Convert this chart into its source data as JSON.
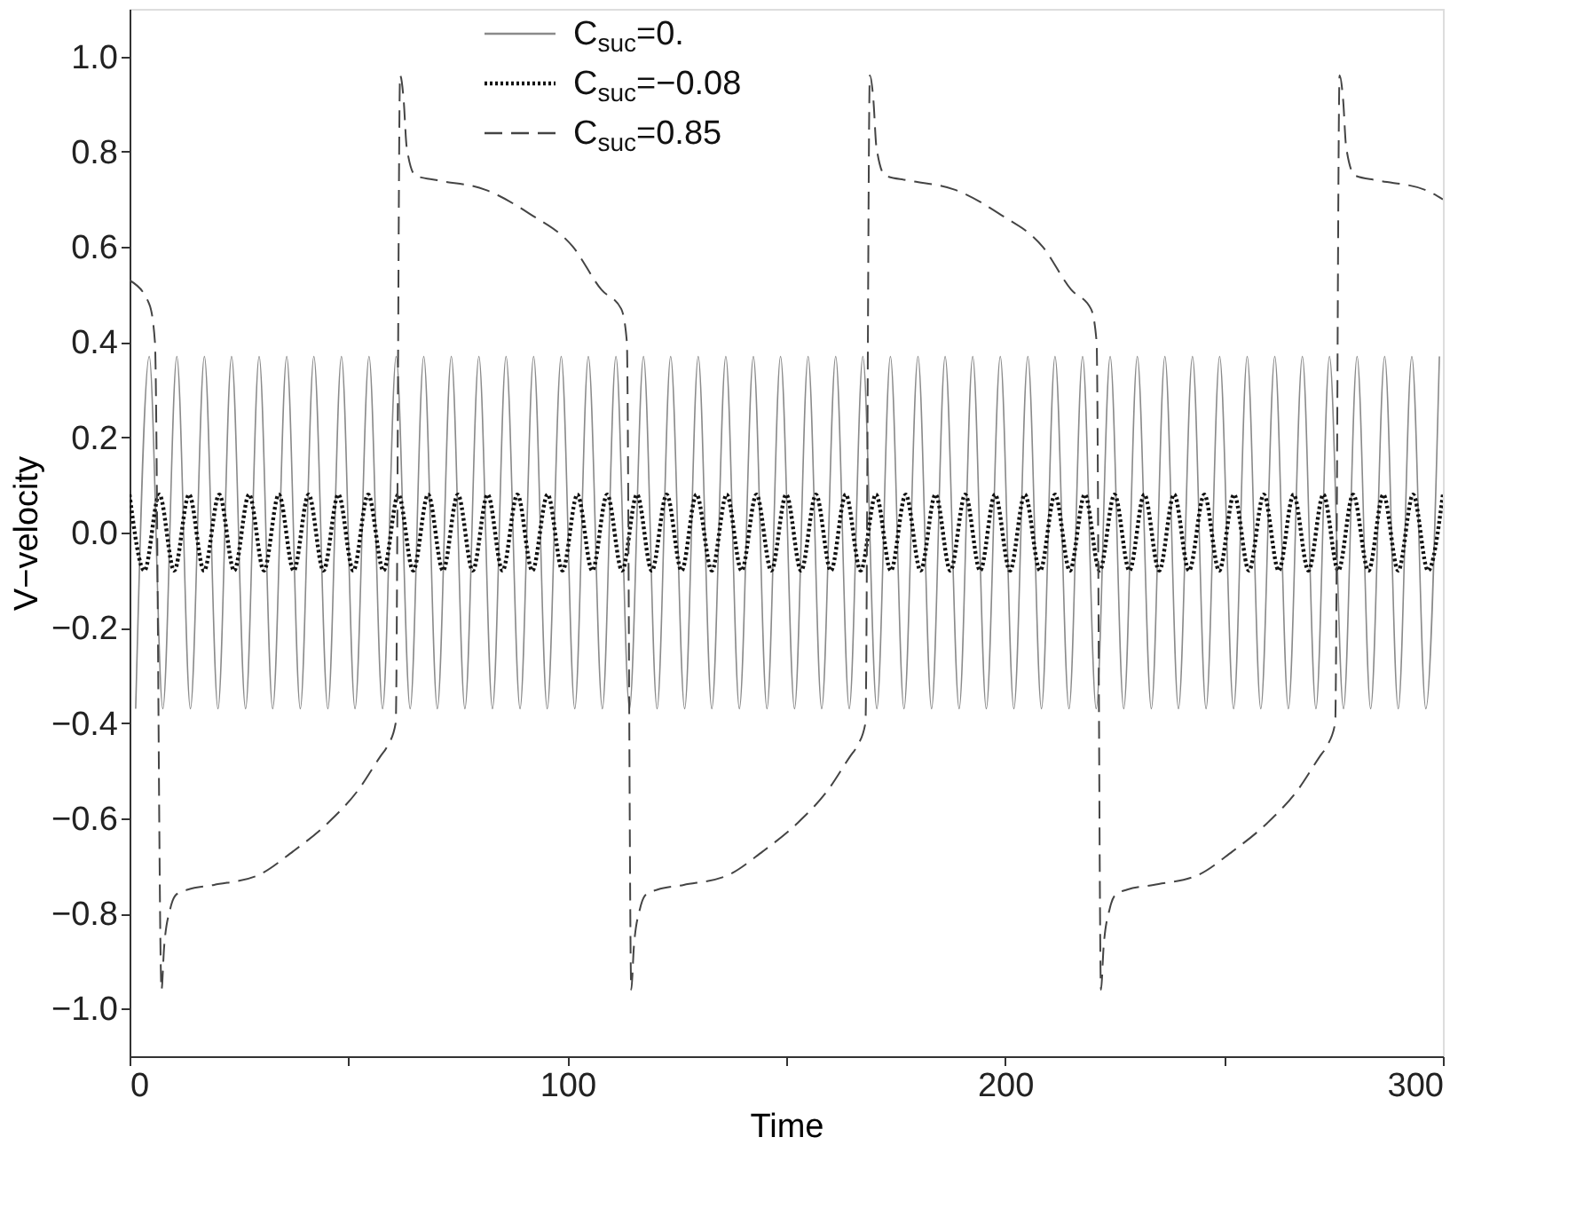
{
  "chart_data": {
    "type": "line",
    "xlabel": "Time",
    "ylabel": "V−velocity",
    "xlim": [
      0,
      300
    ],
    "xticks": [
      0,
      {
        "value": 50,
        "label": null
      },
      100,
      {
        "value": 150,
        "label": null
      },
      200,
      {
        "value": 250,
        "label": null
      },
      300
    ],
    "ylim": [
      -1.1,
      1.1
    ],
    "yticks": [
      {
        "value": -1.0,
        "label": "−1.0"
      },
      {
        "value": -0.8,
        "label": "−0.8"
      },
      {
        "value": -0.6,
        "label": "−0.6"
      },
      {
        "value": -0.4,
        "label": "−0.4"
      },
      {
        "value": -0.2,
        "label": "−0.2"
      },
      {
        "value": 0.0,
        "label": "0.0"
      },
      {
        "value": 0.2,
        "label": "0.2"
      },
      {
        "value": 0.4,
        "label": "0.4"
      },
      {
        "value": 0.6,
        "label": "0.6"
      },
      {
        "value": 0.8,
        "label": "0.8"
      },
      {
        "value": 1.0,
        "label": "1.0"
      }
    ],
    "grid": false,
    "legend": "top",
    "marker": "none",
    "series": [
      {
        "name": "C$_{suc}$=0.",
        "color": "#8a8a8a",
        "line_style": "solid",
        "x": [
          1.4,
          4.5,
          7.6,
          10.8,
          13.9,
          17.1,
          20.2,
          23.3,
          26.5,
          29.6,
          32.7,
          35.9,
          39.0,
          42.1,
          45.3,
          48.4,
          51.5,
          54.7,
          57.8,
          60.9,
          64.1,
          67.2,
          70.3,
          73.5,
          76.6,
          79.8,
          82.9,
          86.0,
          89.2,
          92.3,
          95.4,
          98.6,
          101.7,
          104.8,
          108.0,
          111.1,
          114.2,
          117.4,
          120.5,
          123.6,
          126.8,
          129.9,
          133.0,
          136.2,
          139.3,
          142.5,
          145.6,
          148.7,
          151.9,
          155.0,
          158.1,
          161.3,
          164.4,
          167.5,
          170.7,
          173.8,
          176.9,
          180.1,
          183.2,
          186.3,
          189.5,
          192.6,
          195.7,
          198.9,
          202.0,
          205.2,
          208.3,
          211.4,
          214.6,
          217.7,
          220.8,
          224.0,
          227.1,
          230.2,
          233.4,
          236.5,
          239.6,
          242.8,
          245.9,
          249.0,
          252.2,
          255.3,
          258.4,
          261.6,
          264.7,
          267.9,
          271.0,
          274.1,
          277.3,
          280.4,
          283.5,
          286.7,
          289.8,
          292.9,
          296.1,
          299.2
        ],
        "values": [
          -0.37,
          0.37,
          -0.37,
          0.37,
          -0.37,
          0.37,
          -0.37,
          0.37,
          -0.37,
          0.37,
          -0.37,
          0.37,
          -0.37,
          0.37,
          -0.37,
          0.37,
          -0.37,
          0.37,
          -0.37,
          0.37,
          -0.37,
          0.37,
          -0.37,
          0.37,
          -0.37,
          0.37,
          -0.37,
          0.37,
          -0.37,
          0.37,
          -0.37,
          0.37,
          -0.37,
          0.37,
          -0.37,
          0.37,
          -0.37,
          0.37,
          -0.37,
          0.37,
          -0.37,
          0.37,
          -0.37,
          0.37,
          -0.37,
          0.37,
          -0.37,
          0.37,
          -0.37,
          0.37,
          -0.37,
          0.37,
          -0.37,
          0.37,
          -0.37,
          0.37,
          -0.37,
          0.37,
          -0.37,
          0.37,
          -0.37,
          0.37,
          -0.37,
          0.37,
          -0.37,
          0.37,
          -0.37,
          0.37,
          -0.37,
          0.37,
          -0.37,
          0.37,
          -0.37,
          0.37,
          -0.37,
          0.37,
          -0.37,
          0.37,
          -0.37,
          0.37,
          -0.37,
          0.37,
          -0.37,
          0.37,
          -0.37,
          0.37,
          -0.37,
          0.37,
          -0.37,
          0.37,
          -0.37,
          0.37,
          -0.37,
          0.37,
          -0.37,
          0.37
        ]
      },
      {
        "name": "C$_{suc}$=−0.08",
        "color": "#111111",
        "line_style": "dotted",
        "x": [
          0,
          3.4,
          6.8,
          10.2,
          13.6,
          17.0,
          20.5,
          23.9,
          27.3,
          30.7,
          34.1,
          37.5,
          40.9,
          44.3,
          47.7,
          51.1,
          54.5,
          58.0,
          61.4,
          64.8,
          68.2,
          71.6,
          75.0,
          78.4,
          81.8,
          85.2,
          88.6,
          92.0,
          95.5,
          98.9,
          102.3,
          105.7,
          109.1,
          112.5,
          115.9,
          119.3,
          122.7,
          126.1,
          129.5,
          133.0,
          136.4,
          139.8,
          143.2,
          146.6,
          150.0,
          153.4,
          156.8,
          160.2,
          163.6,
          167.0,
          170.5,
          173.9,
          177.3,
          180.7,
          184.1,
          187.5,
          190.9,
          194.3,
          197.7,
          201.1,
          204.5,
          208.0,
          211.4,
          214.8,
          218.2,
          221.6,
          225.0,
          228.4,
          231.8,
          235.2,
          238.6,
          242.0,
          245.5,
          248.9,
          252.3,
          255.7,
          259.1,
          262.5,
          265.9,
          269.3,
          272.7,
          276.1,
          279.5,
          283.0,
          286.4,
          289.8,
          293.2,
          296.6,
          300.0
        ],
        "values": [
          0.08,
          -0.08,
          0.08,
          -0.08,
          0.08,
          -0.08,
          0.08,
          -0.08,
          0.08,
          -0.08,
          0.08,
          -0.08,
          0.08,
          -0.08,
          0.08,
          -0.08,
          0.08,
          -0.08,
          0.08,
          -0.08,
          0.08,
          -0.08,
          0.08,
          -0.08,
          0.08,
          -0.08,
          0.08,
          -0.08,
          0.08,
          -0.08,
          0.08,
          -0.08,
          0.08,
          -0.08,
          0.08,
          -0.08,
          0.08,
          -0.08,
          0.08,
          -0.08,
          0.08,
          -0.08,
          0.08,
          -0.08,
          0.08,
          -0.08,
          0.08,
          -0.08,
          0.08,
          -0.08,
          0.08,
          -0.08,
          0.08,
          -0.08,
          0.08,
          -0.08,
          0.08,
          -0.08,
          0.08,
          -0.08,
          0.08,
          -0.08,
          0.08,
          -0.08,
          0.08,
          -0.08,
          0.08,
          -0.08,
          0.08,
          -0.08,
          0.08,
          -0.08,
          0.08,
          -0.08,
          0.08,
          -0.08,
          0.08,
          -0.08,
          0.08,
          -0.08,
          0.08,
          -0.08,
          0.08,
          -0.08,
          0.08,
          -0.08,
          0.08,
          -0.08,
          0.08
        ]
      },
      {
        "name": "C$_{suc}$=0.85",
        "color": "#444444",
        "line_style": "dashed",
        "x": [
          0,
          4.5,
          5.8,
          7.3,
          7.9,
          9.3,
          10.7,
          13.3,
          19.3,
          29.3,
          37.3,
          45.3,
          52.3,
          57.3,
          58.8,
          60.8,
          61.8,
          62.6,
          63.3,
          65.3,
          70.3,
          81.3,
          91.3,
          101.3,
          107.8,
          112.3,
          113.6,
          114.6,
          115.2,
          116.6,
          118.0,
          120.6,
          126.6,
          136.6,
          144.6,
          152.6,
          159.6,
          164.6,
          166.1,
          168.1,
          169.1,
          169.9,
          170.6,
          172.6,
          177.6,
          188.6,
          198.6,
          208.6,
          215.1,
          219.6,
          220.9,
          221.9,
          222.5,
          223.9,
          225.3,
          227.9,
          233.9,
          243.9,
          251.9,
          259.9,
          266.9,
          271.9,
          273.4,
          275.4,
          276.4,
          277.2,
          277.9,
          279.9,
          284.9,
          295.9,
          300.0
        ],
        "values": [
          0.53,
          0.48,
          0.4,
          -0.96,
          -0.87,
          -0.79,
          -0.76,
          -0.75,
          -0.74,
          -0.72,
          -0.67,
          -0.61,
          -0.54,
          -0.47,
          -0.45,
          -0.4,
          0.96,
          0.91,
          0.81,
          0.75,
          0.74,
          0.72,
          0.67,
          0.6,
          0.51,
          0.47,
          0.4,
          -0.96,
          -0.87,
          -0.79,
          -0.76,
          -0.75,
          -0.74,
          -0.72,
          -0.67,
          -0.61,
          -0.54,
          -0.47,
          -0.45,
          -0.4,
          0.96,
          0.91,
          0.81,
          0.75,
          0.74,
          0.72,
          0.67,
          0.6,
          0.51,
          0.47,
          0.4,
          -0.96,
          -0.87,
          -0.79,
          -0.76,
          -0.75,
          -0.74,
          -0.72,
          -0.67,
          -0.61,
          -0.54,
          -0.47,
          -0.45,
          -0.4,
          0.96,
          0.91,
          0.81,
          0.75,
          0.74,
          0.72,
          0.7
        ]
      }
    ]
  }
}
